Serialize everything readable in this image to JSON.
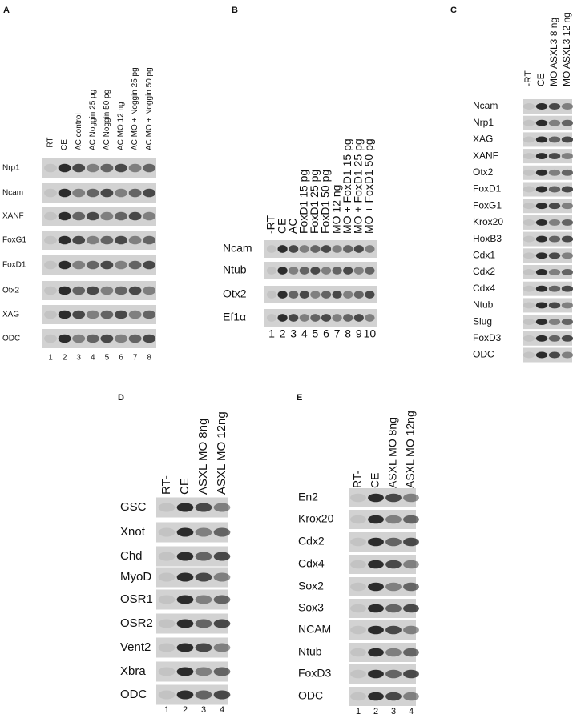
{
  "panels": [
    {
      "label": "A",
      "lanes": [
        "-RT",
        "CE",
        "AC control",
        "AC Noggin 25 pg",
        "AC Noggin 50 pg",
        "AC MO 12 ng",
        "AC MO + Noggin 25 pg",
        "AC MO + Noggin 50 pg"
      ],
      "genes": [
        "Nrp1",
        "Ncam",
        "XANF",
        "FoxG1",
        "FoxD1",
        "Otx2",
        "XAG",
        "ODC"
      ],
      "lane_numbers": [
        "1",
        "2",
        "3",
        "4",
        "5",
        "6",
        "7",
        "8"
      ]
    },
    {
      "label": "B",
      "lanes": [
        "-RT",
        "CE",
        "AC",
        "FoxD1 15 pg",
        "FoxD1 25 pg",
        "FoxD1 50 pg",
        "MO 12 ng",
        "MO + FoxD1 15 pg",
        "MO + FoxD1 25 pg",
        "MO + FoxD1 50 pg"
      ],
      "genes": [
        "Ncam",
        "Ntub",
        "Otx2",
        "Ef1α"
      ],
      "lane_numbers": [
        "1",
        "2",
        "3",
        "4",
        "5",
        "6",
        "7",
        "8",
        "9",
        "10"
      ]
    },
    {
      "label": "C",
      "lanes": [
        "-RT",
        "CE",
        "MO ASXL3 8 ng",
        "MO ASXL3 12 ng"
      ],
      "genes": [
        "Ncam",
        "Nrp1",
        "XAG",
        "XANF",
        "Otx2",
        "FoxD1",
        "FoxG1",
        "Krox20",
        "HoxB3",
        "Cdx1",
        "Cdx2",
        "Cdx4",
        "Ntub",
        "Slug",
        "FoxD3",
        "ODC"
      ]
    },
    {
      "label": "D",
      "lanes": [
        "RT-",
        "CE",
        "ASXL MO 8ng",
        "ASXL MO 12ng"
      ],
      "genes": [
        "GSC",
        "Xnot",
        "Chd",
        "MyoD",
        "OSR1",
        "OSR2",
        "Vent2",
        "Xbra",
        "ODC"
      ],
      "lane_numbers": [
        "1",
        "2",
        "3",
        "4"
      ]
    },
    {
      "label": "E",
      "lanes": [
        "RT-",
        "CE",
        "ASXL MO 8ng",
        "ASXL MO 12ng"
      ],
      "genes": [
        "En2",
        "Krox20",
        "Cdx2",
        "Cdx4",
        "Sox2",
        "Sox3",
        "NCAM",
        "Ntub",
        "FoxD3",
        "ODC"
      ],
      "lane_numbers": [
        "1",
        "2",
        "3",
        "4"
      ]
    }
  ]
}
